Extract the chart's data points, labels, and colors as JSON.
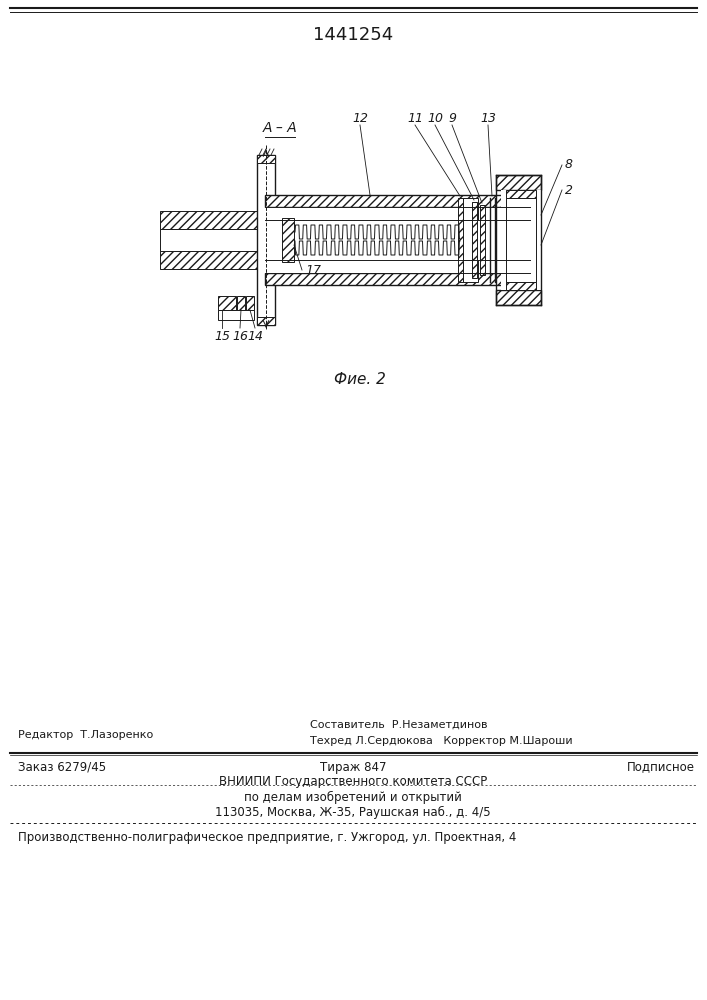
{
  "patent_number": "1441254",
  "fig_label": "Фие. 2",
  "background_color": "#ffffff",
  "line_color": "#1a1a1a",
  "footer": {
    "editor_text": "Редактор  Т.Лазоренко",
    "compositor_text": "Составитель  Р.Незаметдинов",
    "techred_corrector_text": "Техред Л.Сердюкова   Корректор М.Шароши",
    "order_text": "Заказ 6279/45",
    "tirazh_text": "Тираж 847",
    "podpisnoe_text": "Подписное",
    "vniiipi_line1": "ВНИИПИ Государственного комитета СССР",
    "vniiipi_line2": "по делам изобретений и открытий",
    "vniiipi_line3": "113035, Москва, Ж-35, Раушская наб., д. 4/5",
    "factory_line": "Производственно-полиграфическое предприятие, г. Ужгород, ул. Проектная, 4"
  }
}
